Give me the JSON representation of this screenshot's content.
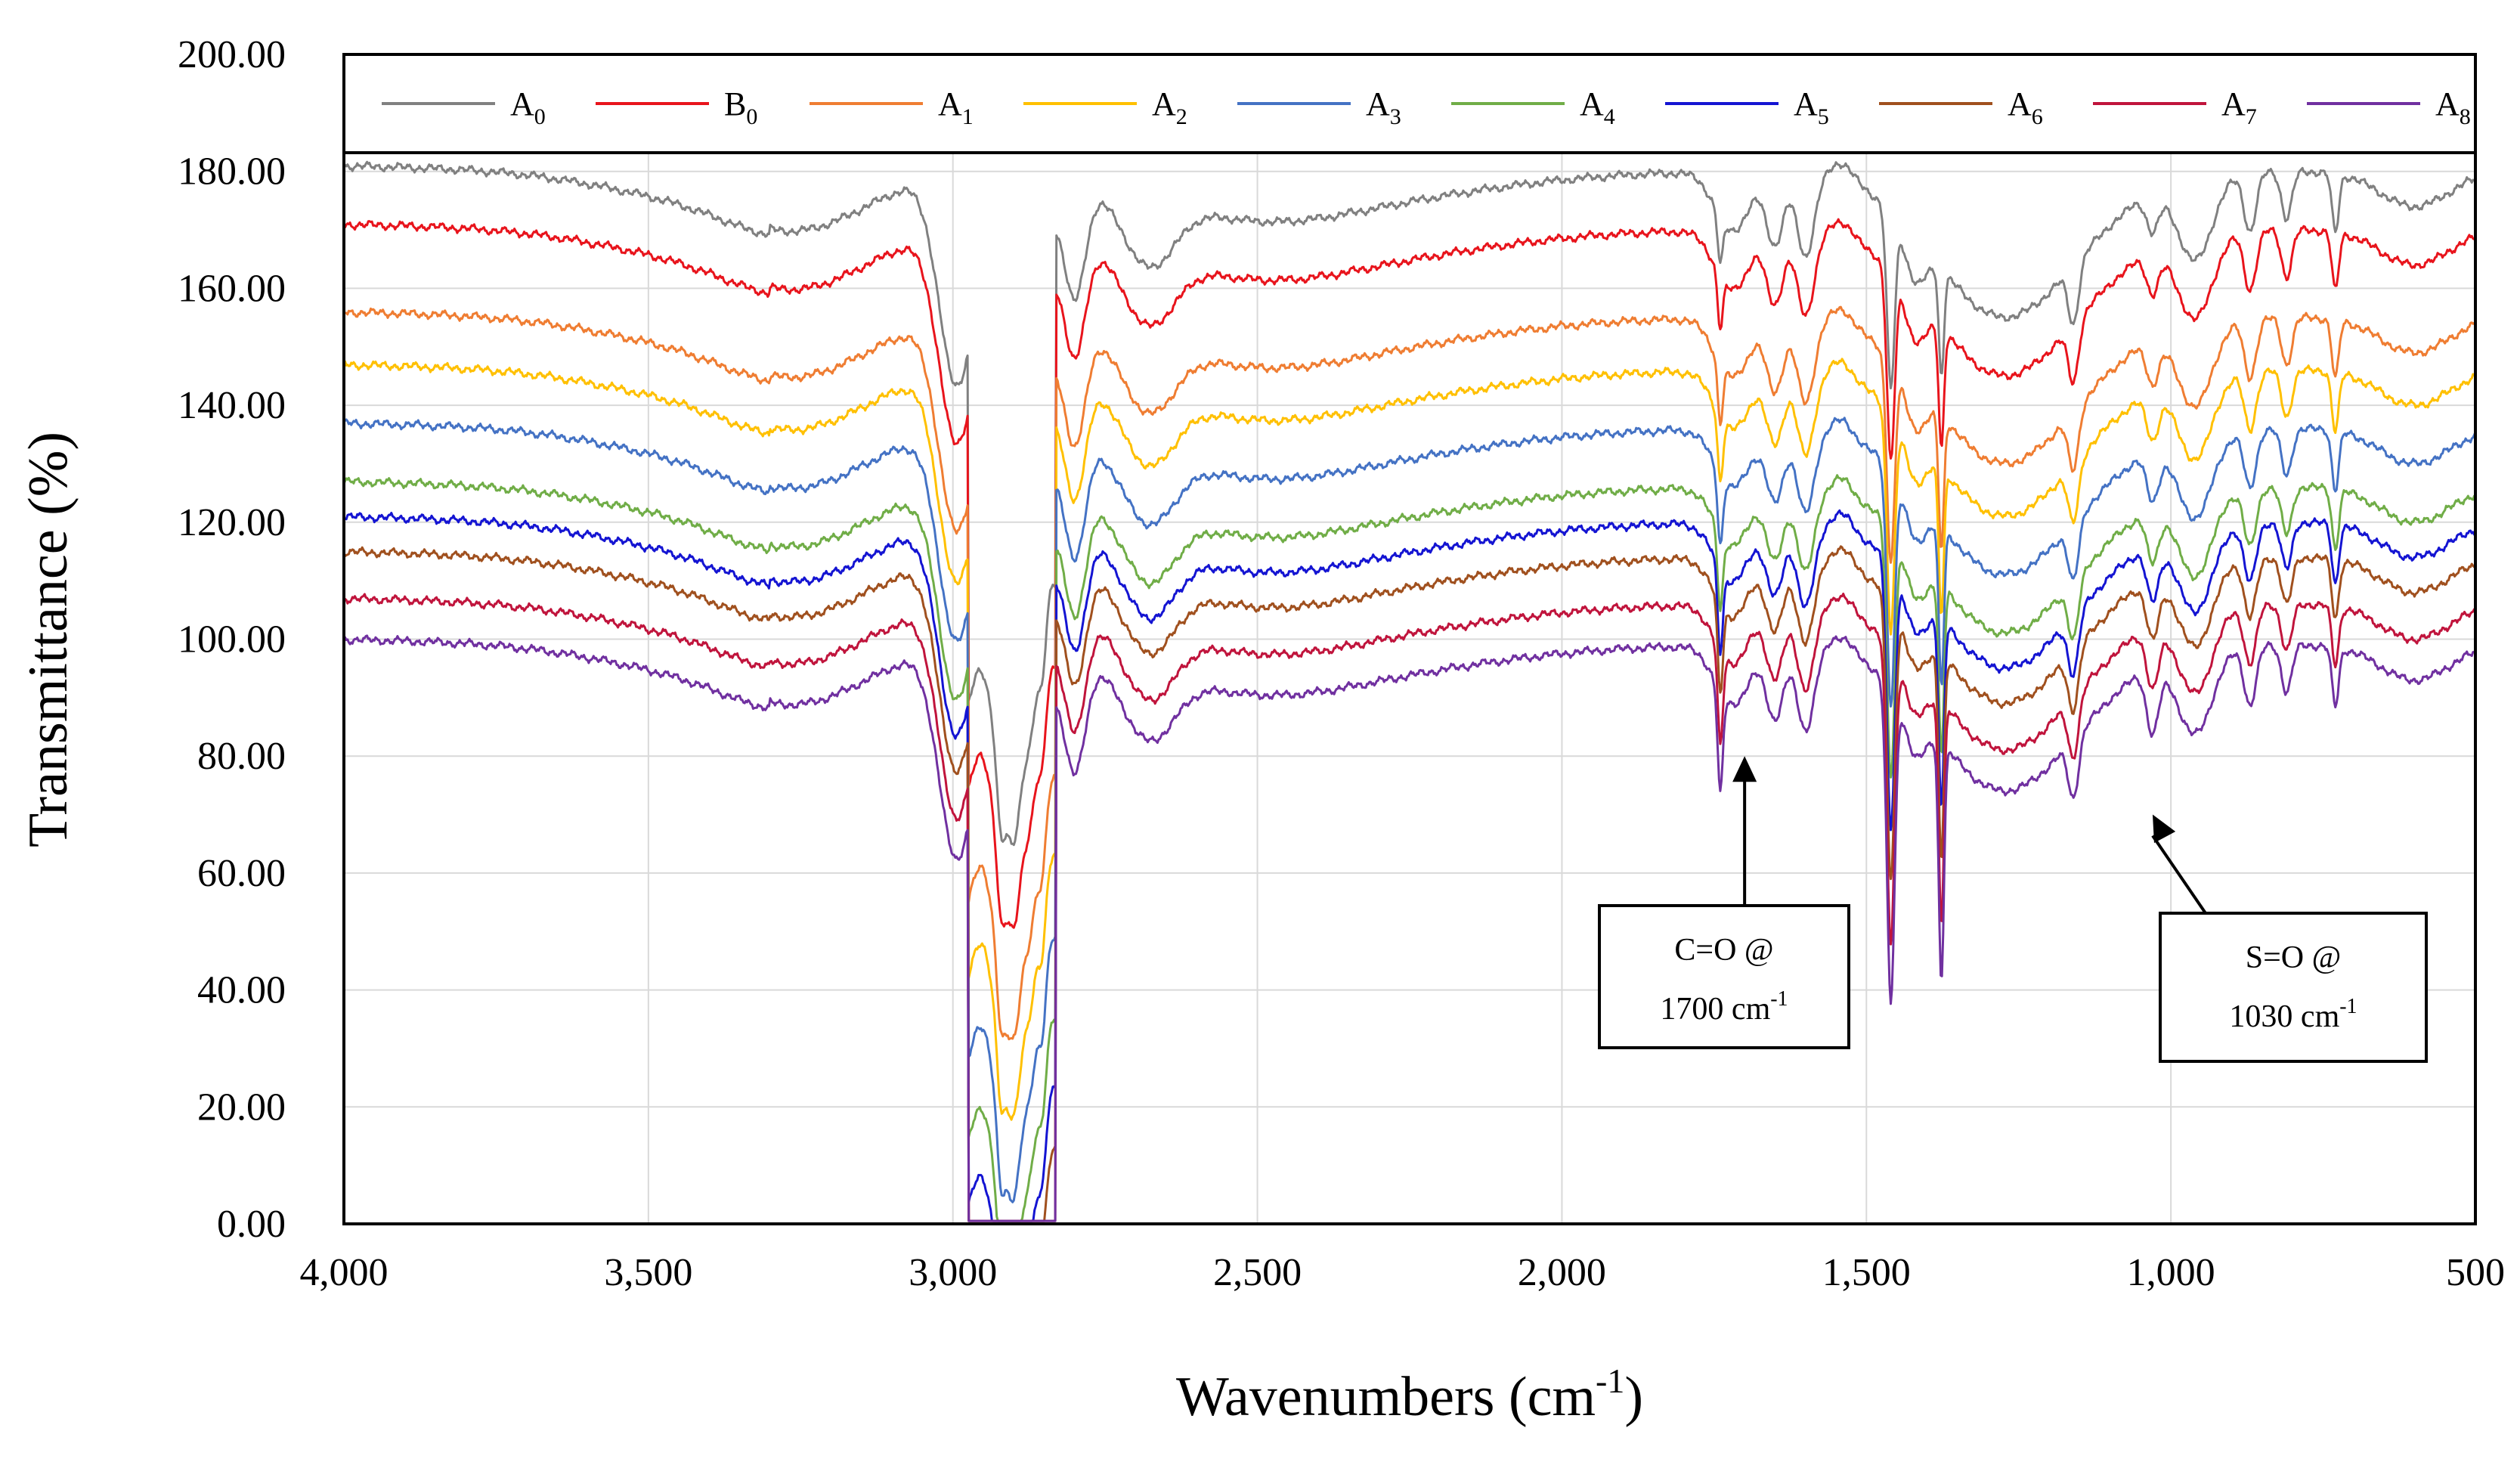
{
  "chart_data": {
    "type": "line",
    "title": "",
    "xlabel": "Wavenumbers (cm",
    "xlabel_sup": "-1",
    "xlabel_tail": ")",
    "ylabel": "Transmittance (%)",
    "xlim": [
      4000,
      500
    ],
    "ylim": [
      0,
      200
    ],
    "x_ticks": [
      4000,
      3500,
      3000,
      2500,
      2000,
      1500,
      1000,
      500
    ],
    "x_tick_labels": [
      "4,000",
      "3,500",
      "3,000",
      "2,500",
      "2,000",
      "1,500",
      "1,000",
      "500"
    ],
    "y_ticks": [
      0,
      20,
      40,
      60,
      80,
      100,
      120,
      140,
      160,
      180,
      200
    ],
    "y_tick_labels": [
      "0.00",
      "20.00",
      "40.00",
      "60.00",
      "80.00",
      "100.00",
      "120.00",
      "140.00",
      "160.00",
      "180.00",
      "200.00"
    ],
    "grid": true,
    "legend_position": "top",
    "series": [
      {
        "name": "A",
        "sub": "0",
        "color": "#808080",
        "offset": 180,
        "depth": 0.0
      },
      {
        "name": "B",
        "sub": "0",
        "color": "#e8141c",
        "offset": 170,
        "depth": 0.09
      },
      {
        "name": "A",
        "sub": "1",
        "color": "#ef7d32",
        "offset": 155,
        "depth": 0.17
      },
      {
        "name": "A",
        "sub": "2",
        "color": "#ffc000",
        "offset": 146,
        "depth": 0.25
      },
      {
        "name": "A",
        "sub": "3",
        "color": "#4472c4",
        "offset": 136,
        "depth": 0.33
      },
      {
        "name": "A",
        "sub": "4",
        "color": "#70ad47",
        "offset": 126,
        "depth": 0.41
      },
      {
        "name": "A",
        "sub": "5",
        "color": "#1414d2",
        "offset": 120,
        "depth": 0.52
      },
      {
        "name": "A",
        "sub": "6",
        "color": "#a0501e",
        "offset": 114,
        "depth": 0.61
      },
      {
        "name": "A",
        "sub": "7",
        "color": "#c0143c",
        "offset": 106,
        "depth": 0.7
      },
      {
        "name": "A",
        "sub": "8",
        "color": "#7030a0",
        "offset": 99,
        "depth": 0.8
      }
    ],
    "annotations": [
      {
        "line1": "C=O @",
        "line2": "1700 cm",
        "sup": "-1",
        "target_x": 1700,
        "target_y": 80
      },
      {
        "line1": "S=O @",
        "line2": "1030 cm",
        "sup": "-1",
        "target_x": 1030,
        "target_y": 70
      }
    ]
  }
}
